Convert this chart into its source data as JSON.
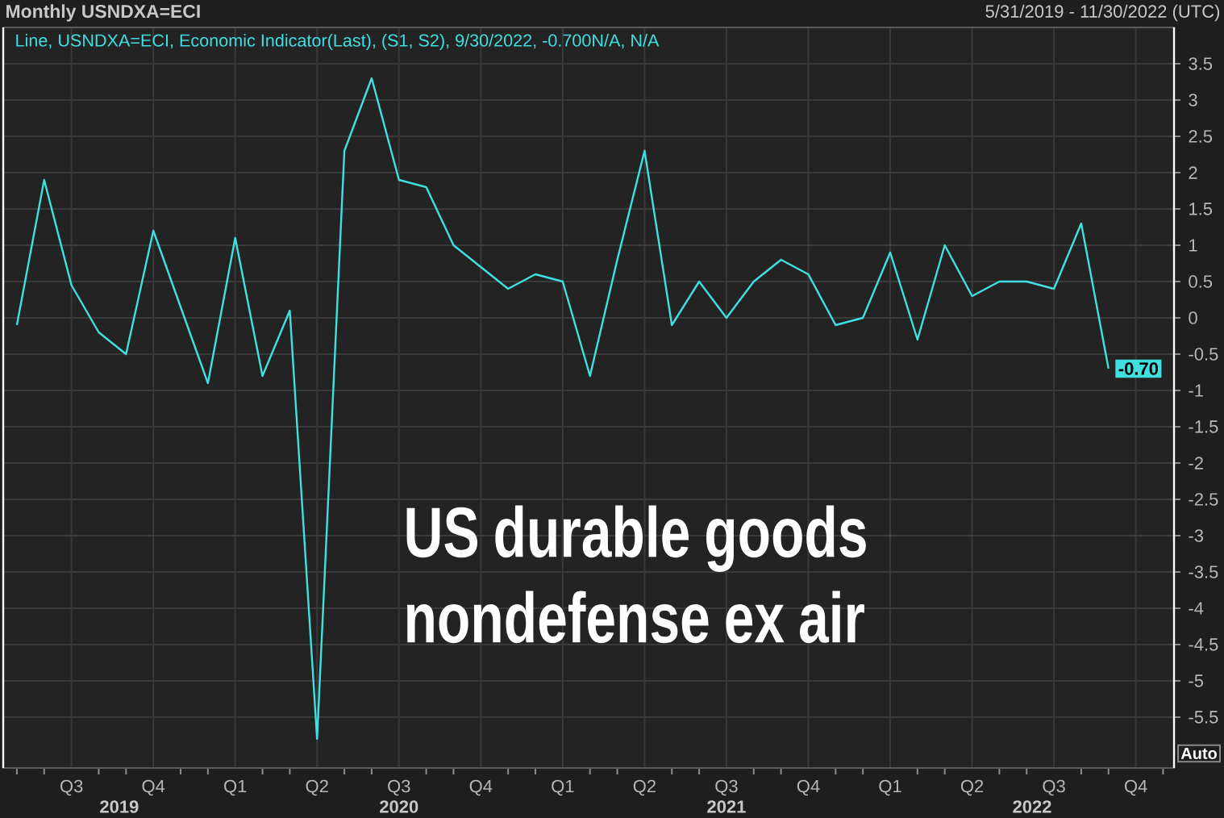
{
  "chart_data": {
    "type": "line",
    "title": "US durable goods nondefense ex air",
    "subtitle": "Monthly USNDXA=ECI",
    "annotations": [
      "5/31/2019 - 11/30/2022 (UTC)",
      "2019",
      "2020",
      "2021",
      "2022",
      "Auto"
    ],
    "x": [
      "2019-05",
      "2019-06",
      "2019-07",
      "2019-08",
      "2019-09",
      "2019-10",
      "2019-11",
      "2019-12",
      "2020-01",
      "2020-02",
      "2020-03",
      "2020-04",
      "2020-05",
      "2020-06",
      "2020-07",
      "2020-08",
      "2020-09",
      "2020-10",
      "2020-11",
      "2020-12",
      "2021-01",
      "2021-02",
      "2021-03",
      "2021-04",
      "2021-05",
      "2021-06",
      "2021-07",
      "2021-08",
      "2021-09",
      "2021-10",
      "2021-11",
      "2021-12",
      "2022-01",
      "2022-02",
      "2022-03",
      "2022-04",
      "2022-05",
      "2022-06",
      "2022-07",
      "2022-08",
      "2022-09"
    ],
    "series": [
      {
        "name": "Line, USNDXA=ECI, Economic Indicator(Last), (S1, S2), 9/30/2022, -0.700N/A, N/A",
        "color": "#40e0e0",
        "values": [
          -0.1,
          1.9,
          0.45,
          -0.2,
          -0.5,
          1.2,
          0.15,
          -0.9,
          1.1,
          -0.8,
          0.1,
          -5.8,
          2.3,
          3.3,
          1.9,
          1.8,
          1.0,
          0.7,
          0.4,
          0.6,
          0.5,
          -0.8,
          0.8,
          2.3,
          -0.1,
          0.5,
          0.0,
          0.5,
          0.8,
          0.6,
          -0.1,
          0.0,
          0.9,
          -0.3,
          1.0,
          0.3,
          0.5,
          0.5,
          0.4,
          1.3,
          -0.7
        ],
        "value_labels": [
          null,
          null,
          null,
          null,
          null,
          null,
          null,
          null,
          null,
          null,
          null,
          null,
          null,
          null,
          null,
          null,
          null,
          null,
          null,
          null,
          null,
          null,
          null,
          null,
          null,
          null,
          null,
          null,
          null,
          null,
          null,
          null,
          null,
          null,
          null,
          null,
          null,
          null,
          null,
          null,
          "-0.70"
        ]
      }
    ],
    "xlim": [
      "2019-04-16",
      "2022-11-13"
    ],
    "xticks": [
      {
        "value": "2019-05",
        "label": null
      },
      {
        "value": "2019-06",
        "label": null
      },
      {
        "value": "2019-07",
        "label": "Q3"
      },
      {
        "value": "2019-08",
        "label": null
      },
      {
        "value": "2019-09",
        "label": null
      },
      {
        "value": "2019-10",
        "label": "Q4"
      },
      {
        "value": "2019-11",
        "label": null
      },
      {
        "value": "2019-12",
        "label": null
      },
      {
        "value": "2020-01",
        "label": "Q1"
      },
      {
        "value": "2020-02",
        "label": null
      },
      {
        "value": "2020-03",
        "label": null
      },
      {
        "value": "2020-04",
        "label": "Q2"
      },
      {
        "value": "2020-05",
        "label": null
      },
      {
        "value": "2020-06",
        "label": null
      },
      {
        "value": "2020-07",
        "label": "Q3"
      },
      {
        "value": "2020-08",
        "label": null
      },
      {
        "value": "2020-09",
        "label": null
      },
      {
        "value": "2020-10",
        "label": "Q4"
      },
      {
        "value": "2020-11",
        "label": null
      },
      {
        "value": "2020-12",
        "label": null
      },
      {
        "value": "2021-01",
        "label": "Q1"
      },
      {
        "value": "2021-02",
        "label": null
      },
      {
        "value": "2021-03",
        "label": null
      },
      {
        "value": "2021-04",
        "label": "Q2"
      },
      {
        "value": "2021-05",
        "label": null
      },
      {
        "value": "2021-06",
        "label": null
      },
      {
        "value": "2021-07",
        "label": "Q3"
      },
      {
        "value": "2021-08",
        "label": null
      },
      {
        "value": "2021-09",
        "label": null
      },
      {
        "value": "2021-10",
        "label": "Q4"
      },
      {
        "value": "2021-11",
        "label": null
      },
      {
        "value": "2021-12",
        "label": null
      },
      {
        "value": "2022-01",
        "label": "Q1"
      },
      {
        "value": "2022-02",
        "label": null
      },
      {
        "value": "2022-03",
        "label": null
      },
      {
        "value": "2022-04",
        "label": "Q2"
      },
      {
        "value": "2022-05",
        "label": null
      },
      {
        "value": "2022-06",
        "label": null
      },
      {
        "value": "2022-07",
        "label": "Q3"
      },
      {
        "value": "2022-08",
        "label": null
      },
      {
        "value": "2022-09",
        "label": null
      },
      {
        "value": "2022-10",
        "label": "Q4"
      },
      {
        "value": "2022-11",
        "label": null
      }
    ],
    "ylim": [
      -6.2,
      4.0
    ],
    "yticks": [
      -5.5,
      -5,
      -4.5,
      -4,
      -3.5,
      -3,
      -2.5,
      -2,
      -1.5,
      -1,
      -0.5,
      0,
      0.5,
      1,
      1.5,
      2,
      2.5,
      3,
      3.5
    ],
    "grid": true,
    "legend": "top left"
  }
}
